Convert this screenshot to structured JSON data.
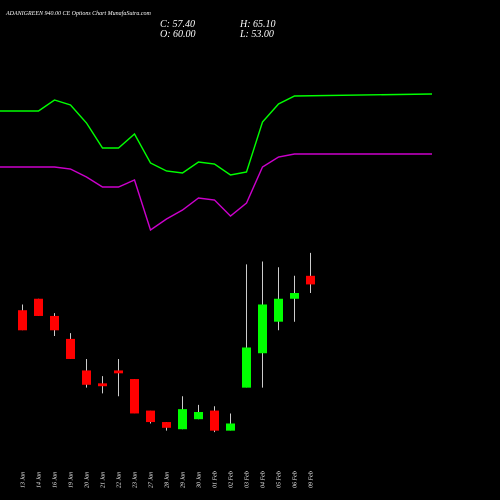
{
  "title": "ADANIGREEN 940.00 CE Options Chart MunafaSutra.com",
  "ohlc": {
    "c": "C: 57.40",
    "o": "O: 60.00",
    "h": "H: 65.10",
    "l": "L: 53.00"
  },
  "colors": {
    "up": "#00ff00",
    "down": "#ff0000",
    "band_upper": "#00ff00",
    "band_lower": "#cc00cc",
    "background": "#000000",
    "text": "#ffffff"
  },
  "chart_data": {
    "type": "candlestick",
    "title": "ADANIGREEN 940.00 CE Options Chart MunafaSutra.com",
    "x": [
      "13 Jan",
      "14 Jan",
      "16 Jan",
      "19 Jan",
      "20 Jan",
      "21 Jan",
      "22 Jan",
      "23 Jan",
      "27 Jan",
      "28 Jan",
      "29 Jan",
      "30 Jan",
      "01 Feb",
      "02 Feb",
      "03 Feb",
      "04 Feb",
      "05 Feb",
      "06 Feb",
      "09 Feb"
    ],
    "candles": [
      {
        "open": 63,
        "high": 65,
        "low": 56,
        "close": 56
      },
      {
        "open": 67,
        "high": 67,
        "low": 61,
        "close": 61
      },
      {
        "open": 61,
        "high": 62,
        "low": 54,
        "close": 56
      },
      {
        "open": 53,
        "high": 55,
        "low": 46,
        "close": 46
      },
      {
        "open": 42,
        "high": 46,
        "low": 36,
        "close": 37
      },
      {
        "open": 37.5,
        "high": 40,
        "low": 34,
        "close": 36.5
      },
      {
        "open": 42,
        "high": 46,
        "low": 33,
        "close": 41
      },
      {
        "open": 39,
        "high": 39,
        "low": 27,
        "close": 27
      },
      {
        "open": 28,
        "high": 28,
        "low": 23.5,
        "close": 24
      },
      {
        "open": 24,
        "high": 24,
        "low": 21,
        "close": 22
      },
      {
        "open": 21.5,
        "high": 33,
        "low": 21.5,
        "close": 28.5
      },
      {
        "open": 25,
        "high": 30,
        "low": 25,
        "close": 27.5
      },
      {
        "open": 28,
        "high": 29.5,
        "low": 20.5,
        "close": 21
      },
      {
        "open": 21,
        "high": 27,
        "low": 21,
        "close": 23.5
      },
      {
        "open": 36,
        "high": 79,
        "low": 36,
        "close": 50
      },
      {
        "open": 48,
        "high": 80,
        "low": 36,
        "close": 65
      },
      {
        "open": 59,
        "high": 78,
        "low": 56,
        "close": 67
      },
      {
        "open": 67,
        "high": 75,
        "low": 59,
        "close": 69
      },
      {
        "open": 75,
        "high": 83,
        "low": 69,
        "close": 72
      }
    ],
    "series": [
      {
        "values": [
          111,
          111,
          100,
          105,
          123,
          148,
          148,
          134,
          163,
          171,
          173,
          162,
          164,
          175,
          172,
          122,
          104,
          96,
          94
        ]
      },
      {
        "values": [
          167,
          167,
          167,
          169,
          177,
          187,
          187,
          180,
          230,
          219,
          210,
          198,
          200,
          216,
          203,
          167,
          157,
          154,
          154
        ]
      }
    ],
    "price_range": [
      0,
      100
    ],
    "grid": false
  }
}
